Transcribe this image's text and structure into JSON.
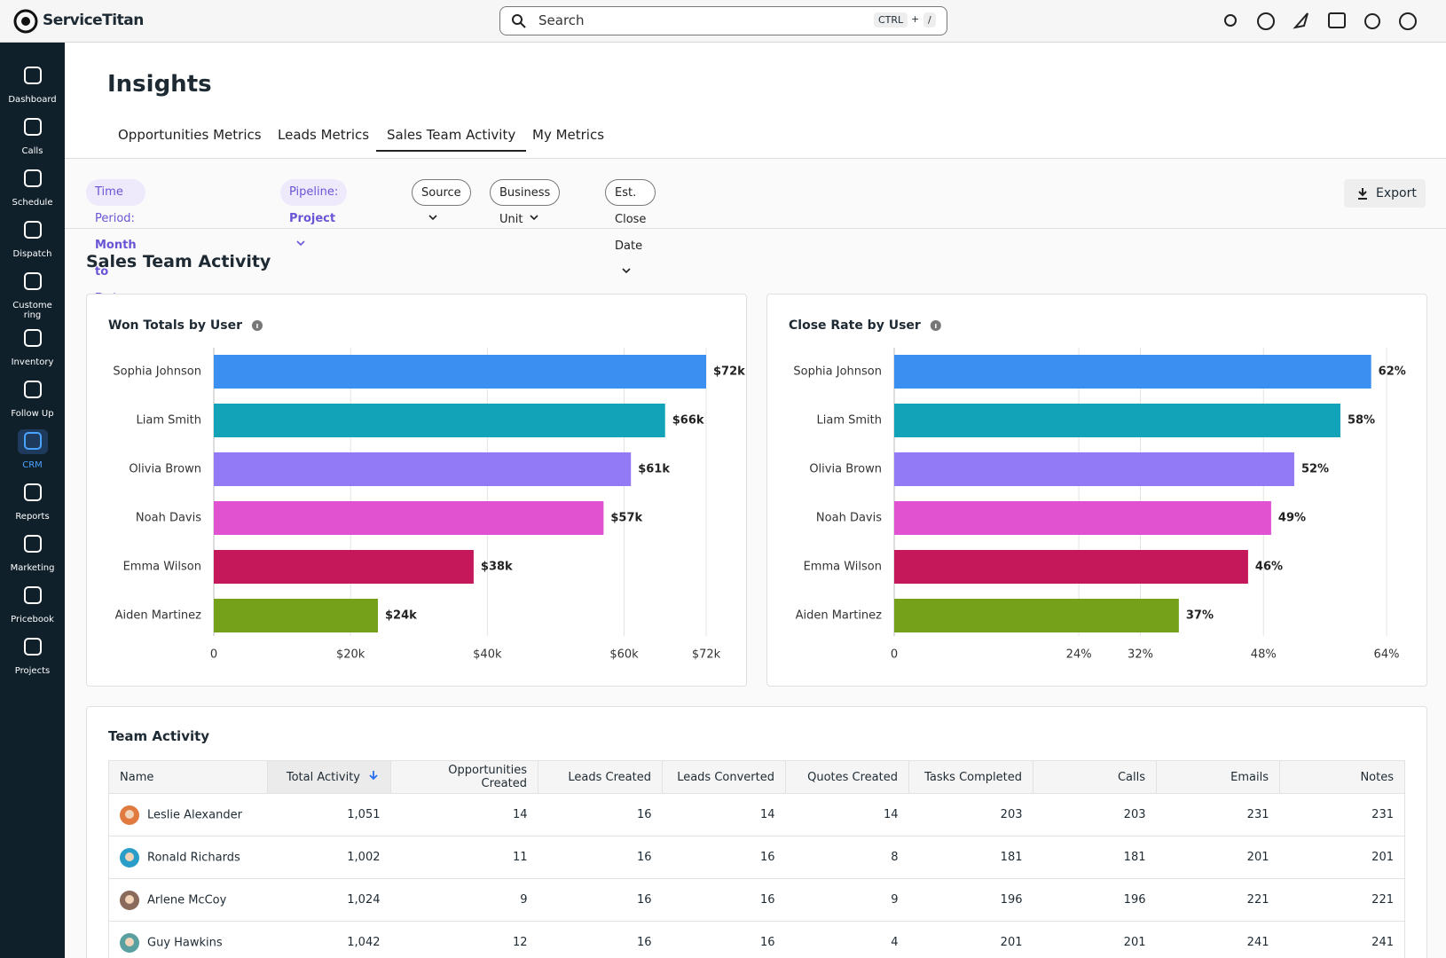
{
  "header": {
    "logo": "ServiceTitan",
    "search": {
      "placeholder": "Search",
      "shortcut": [
        "CTRL",
        "+",
        "/"
      ]
    }
  },
  "sidebar": {
    "items": [
      "Dashboard",
      "Calls",
      "Schedule",
      "Dispatch",
      "Customering",
      "Inventory",
      "Follow Up",
      "CRM",
      "Reports",
      "Marketing",
      "Pricebook",
      "Projects"
    ],
    "active": 7
  },
  "page": {
    "title": "Insights",
    "tabs": [
      "Opportunities Metrics",
      "Leads Metrics",
      "Sales Team Activity",
      "My Metrics"
    ],
    "active_tab": 2
  },
  "filters": [
    {
      "label": "Time Period:",
      "value": "Month to Date"
    },
    {
      "label": "Pipeline:",
      "value": "Project"
    },
    {
      "label": "Source"
    },
    {
      "label": "Business Unit"
    },
    {
      "label": "Est. Close Date"
    }
  ],
  "export": "Export",
  "section_title": "Sales Team Activity",
  "chart_data": [
    {
      "type": "bar",
      "orientation": "horizontal",
      "title": "Won Totals by User",
      "categories": [
        "Sophia Johnson",
        "Liam Smith",
        "Olivia Brown",
        "Noah Davis",
        "Emma Wilson",
        "Aiden Martinez"
      ],
      "values": [
        72000,
        66000,
        61000,
        57000,
        38000,
        24000
      ],
      "value_labels": [
        "$72k",
        "$66k",
        "$61k",
        "$57k",
        "$38k",
        "$24k"
      ],
      "colors": [
        "#3b8ff0",
        "#13a3b8",
        "#9279f5",
        "#e052d0",
        "#c4185a",
        "#74a01a"
      ],
      "xlim": [
        0,
        72000
      ],
      "xticks": [
        0,
        {
          "value": 20000,
          "label": "$20k"
        },
        {
          "value": 40000,
          "label": "$40k"
        },
        {
          "value": 60000,
          "label": "$60k"
        },
        {
          "value": 72000,
          "label": "$72k"
        }
      ],
      "grid": true
    },
    {
      "type": "bar",
      "orientation": "horizontal",
      "title": "Close Rate by User",
      "categories": [
        "Sophia Johnson",
        "Liam Smith",
        "Olivia Brown",
        "Noah Davis",
        "Emma Wilson",
        "Aiden Martinez"
      ],
      "values": [
        62,
        58,
        52,
        49,
        46,
        37
      ],
      "value_labels": [
        "62%",
        "58%",
        "52%",
        "49%",
        "46%",
        "37%"
      ],
      "colors": [
        "#3b8ff0",
        "#13a3b8",
        "#9279f5",
        "#e052d0",
        "#c4185a",
        "#74a01a"
      ],
      "xlim": [
        0,
        64
      ],
      "xticks": [
        0,
        {
          "value": 24,
          "label": "24%"
        },
        {
          "value": 32,
          "label": "32%"
        },
        {
          "value": 48,
          "label": "48%"
        },
        {
          "value": 64,
          "label": "64%"
        }
      ],
      "grid": true
    }
  ],
  "table": {
    "title": "Team Activity",
    "columns": [
      "Name",
      "Total Activity",
      "Opportunities Created",
      "Leads Created",
      "Leads Converted",
      "Quotes Created",
      "Tasks Completed",
      "Calls",
      "Emails",
      "Notes"
    ],
    "sort_column": 1,
    "rows": [
      [
        "Leslie Alexander",
        "1,051",
        "14",
        "16",
        "14",
        "14",
        "203",
        "203",
        "231",
        "231"
      ],
      [
        "Ronald Richards",
        "1,002",
        "11",
        "16",
        "16",
        "8",
        "181",
        "181",
        "201",
        "201"
      ],
      [
        "Arlene McCoy",
        "1,024",
        "9",
        "16",
        "16",
        "9",
        "196",
        "196",
        "221",
        "221"
      ],
      [
        "Guy Hawkins",
        "1,042",
        "12",
        "16",
        "16",
        "4",
        "201",
        "201",
        "241",
        "241"
      ]
    ]
  }
}
